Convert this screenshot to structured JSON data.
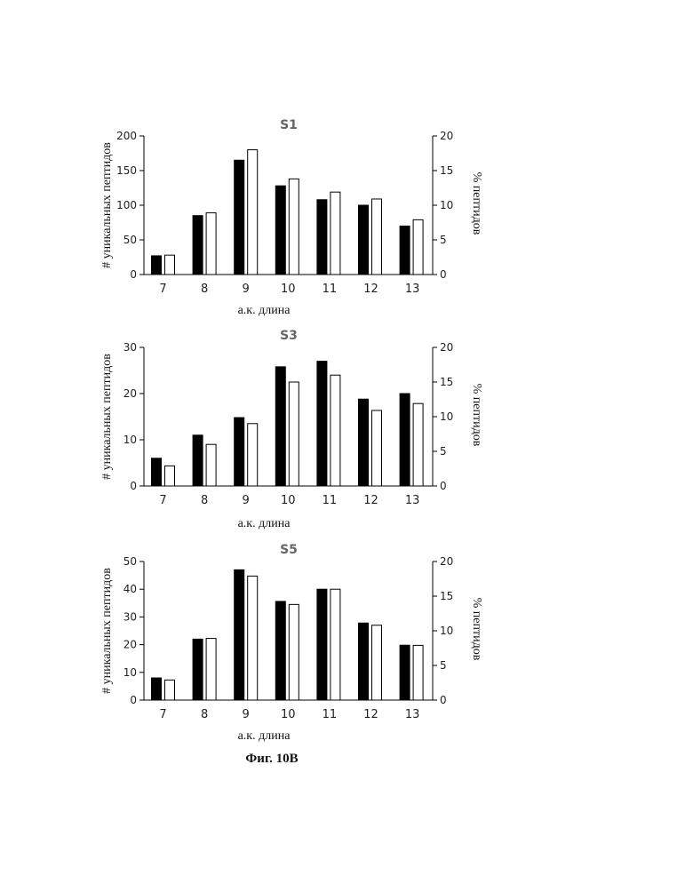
{
  "figure_caption": "Фиг. 10B",
  "chart_data": [
    {
      "type": "bar",
      "title": "S1",
      "xlabel": "а.к. длина",
      "ylabel": "# уникальных пептидов",
      "y2label": "% пептидов",
      "categories": [
        "7",
        "8",
        "9",
        "10",
        "11",
        "12",
        "13"
      ],
      "ylim": [
        0,
        200
      ],
      "yticks": [
        0,
        50,
        100,
        150,
        200
      ],
      "y2lim": [
        0,
        20
      ],
      "y2ticks": [
        0,
        5,
        10,
        15,
        20
      ],
      "series": [
        {
          "axis": "left",
          "color": "#000000",
          "values": [
            27,
            85,
            165,
            128,
            108,
            100,
            70
          ]
        },
        {
          "axis": "right",
          "color": "#ffffff",
          "values": [
            2.8,
            8.9,
            18.0,
            13.8,
            11.9,
            10.9,
            7.9
          ]
        }
      ]
    },
    {
      "type": "bar",
      "title": "S3",
      "xlabel": "а.к. длина",
      "ylabel": "# уникальных пептидов",
      "y2label": "% пептидов",
      "categories": [
        "7",
        "8",
        "9",
        "10",
        "11",
        "12",
        "13"
      ],
      "ylim": [
        0,
        30
      ],
      "yticks": [
        0,
        10,
        20,
        30
      ],
      "y2lim": [
        0,
        20
      ],
      "y2ticks": [
        0,
        5,
        10,
        15,
        20
      ],
      "series": [
        {
          "axis": "left",
          "color": "#000000",
          "values": [
            6,
            11,
            14.8,
            25.8,
            27,
            18.8,
            20
          ]
        },
        {
          "axis": "right",
          "color": "#ffffff",
          "values": [
            2.9,
            6.0,
            9.0,
            15.0,
            16.0,
            10.9,
            11.9
          ]
        }
      ]
    },
    {
      "type": "bar",
      "title": "S5",
      "xlabel": "а.к. длина",
      "ylabel": "# уникальных пептидов",
      "y2label": "% пептидов",
      "categories": [
        "7",
        "8",
        "9",
        "10",
        "11",
        "12",
        "13"
      ],
      "ylim": [
        0,
        50
      ],
      "yticks": [
        0,
        10,
        20,
        30,
        40,
        50
      ],
      "y2lim": [
        0,
        20
      ],
      "y2ticks": [
        0,
        5,
        10,
        15,
        20
      ],
      "series": [
        {
          "axis": "left",
          "color": "#000000",
          "values": [
            8,
            22,
            47,
            35.6,
            40,
            27.8,
            19.8
          ]
        },
        {
          "axis": "right",
          "color": "#ffffff",
          "values": [
            2.9,
            8.9,
            17.9,
            13.8,
            16.0,
            10.8,
            7.9
          ]
        }
      ]
    }
  ]
}
